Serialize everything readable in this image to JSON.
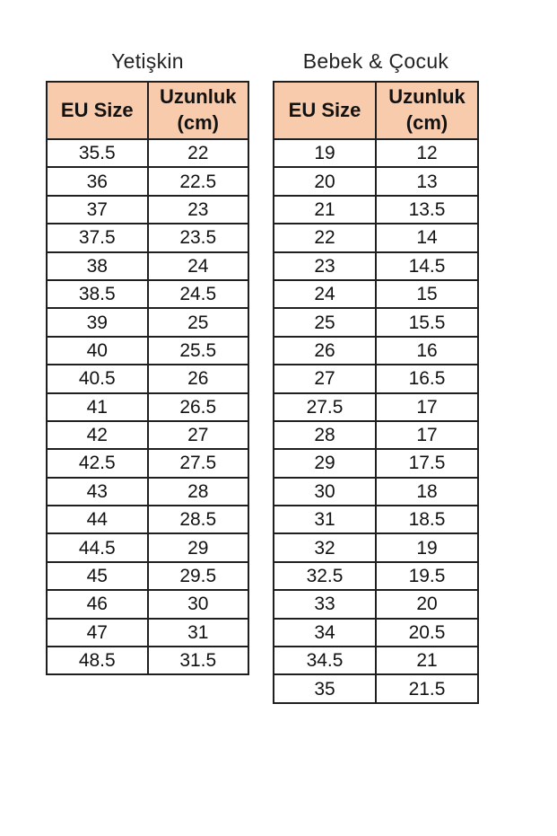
{
  "colors": {
    "header_bg": "#F8CBAD",
    "border": "#1f1f1f",
    "text": "#121212",
    "title": "#222222",
    "page_bg": "#ffffff"
  },
  "chart_data": [
    {
      "type": "table",
      "title": "Yetişkin",
      "columns": [
        "EU Size",
        "Uzunluk (cm)"
      ],
      "rows": [
        [
          "35.5",
          "22"
        ],
        [
          "36",
          "22.5"
        ],
        [
          "37",
          "23"
        ],
        [
          "37.5",
          "23.5"
        ],
        [
          "38",
          "24"
        ],
        [
          "38.5",
          "24.5"
        ],
        [
          "39",
          "25"
        ],
        [
          "40",
          "25.5"
        ],
        [
          "40.5",
          "26"
        ],
        [
          "41",
          "26.5"
        ],
        [
          "42",
          "27"
        ],
        [
          "42.5",
          "27.5"
        ],
        [
          "43",
          "28"
        ],
        [
          "44",
          "28.5"
        ],
        [
          "44.5",
          "29"
        ],
        [
          "45",
          "29.5"
        ],
        [
          "46",
          "30"
        ],
        [
          "47",
          "31"
        ],
        [
          "48.5",
          "31.5"
        ]
      ]
    },
    {
      "type": "table",
      "title": "Bebek & Çocuk",
      "columns": [
        "EU Size",
        "Uzunluk (cm)"
      ],
      "rows": [
        [
          "19",
          "12"
        ],
        [
          "20",
          "13"
        ],
        [
          "21",
          "13.5"
        ],
        [
          "22",
          "14"
        ],
        [
          "23",
          "14.5"
        ],
        [
          "24",
          "15"
        ],
        [
          "25",
          "15.5"
        ],
        [
          "26",
          "16"
        ],
        [
          "27",
          "16.5"
        ],
        [
          "27.5",
          "17"
        ],
        [
          "28",
          "17"
        ],
        [
          "29",
          "17.5"
        ],
        [
          "30",
          "18"
        ],
        [
          "31",
          "18.5"
        ],
        [
          "32",
          "19"
        ],
        [
          "32.5",
          "19.5"
        ],
        [
          "33",
          "20"
        ],
        [
          "34",
          "20.5"
        ],
        [
          "34.5",
          "21"
        ],
        [
          "35",
          "21.5"
        ]
      ]
    }
  ]
}
